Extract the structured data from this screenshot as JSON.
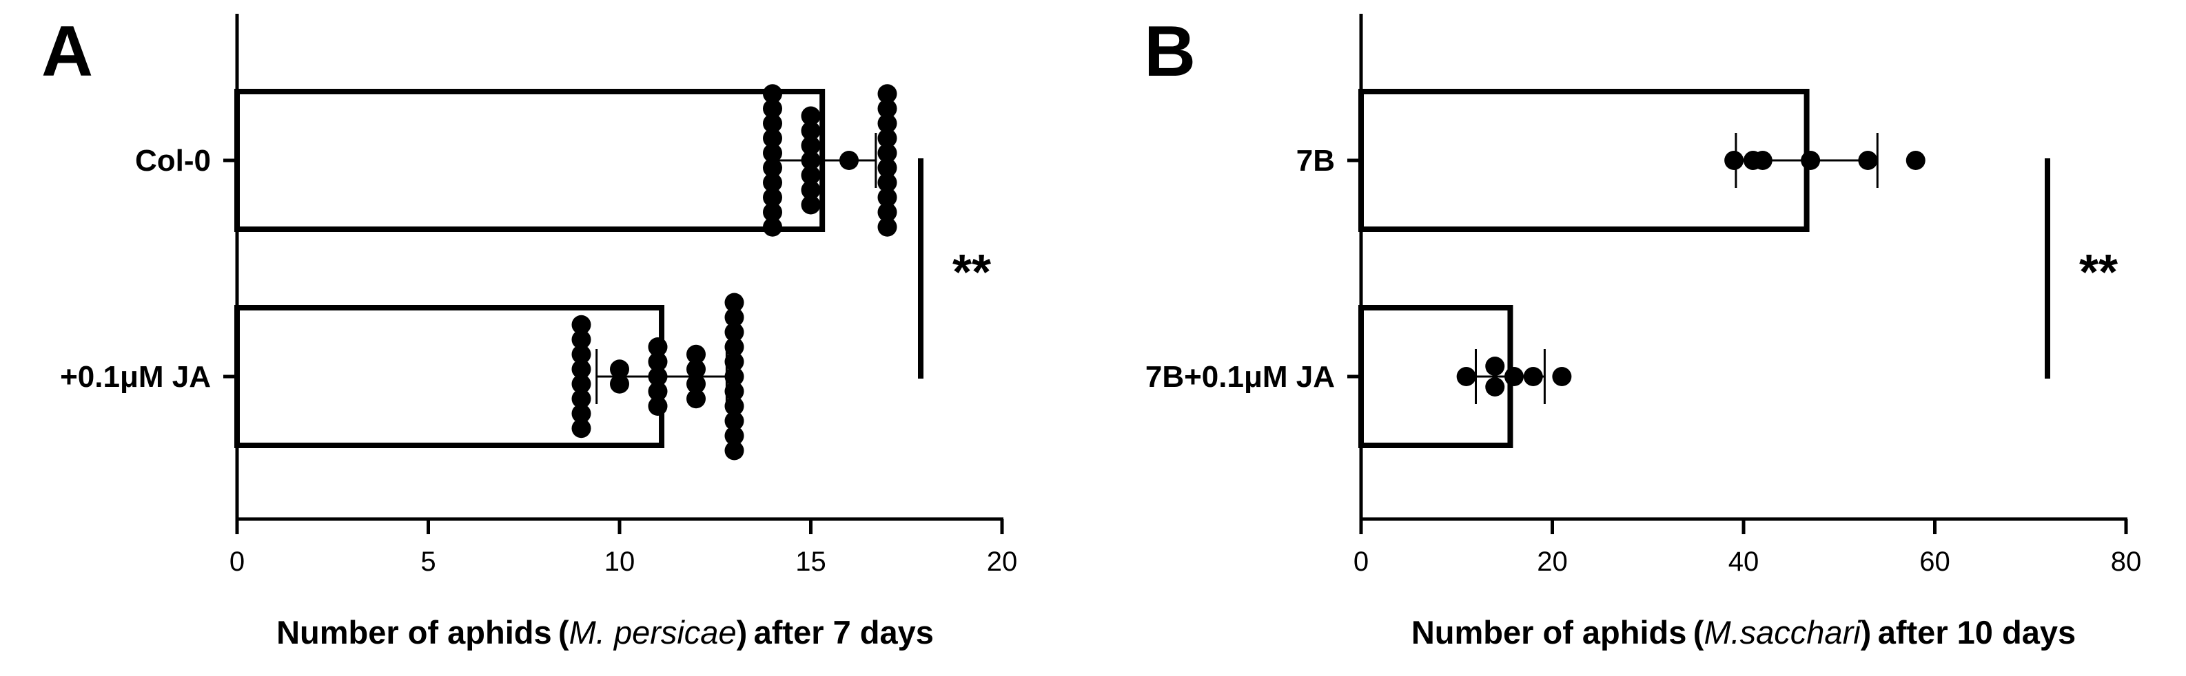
{
  "chart_data": [
    {
      "type": "bar",
      "orientation": "horizontal",
      "panel_label": "A",
      "categories": [
        "Col-0",
        "+0.1μM JA"
      ],
      "values": [
        15.3,
        11.1
      ],
      "error": [
        {
          "low": 13.9,
          "high": 16.7
        },
        {
          "low": 9.4,
          "high": 12.8
        }
      ],
      "points": [
        [
          14,
          14,
          14,
          14,
          14,
          14,
          14,
          14,
          14,
          14,
          15,
          15,
          15,
          15,
          15,
          15,
          15,
          16,
          17,
          17,
          17,
          17,
          17,
          17,
          17,
          17,
          17,
          17
        ],
        [
          9,
          9,
          9,
          9,
          9,
          9,
          9,
          9,
          10,
          10,
          11,
          11,
          11,
          11,
          11,
          12,
          12,
          12,
          12,
          13,
          13,
          13,
          13,
          13,
          13,
          13,
          13,
          13,
          13,
          13
        ]
      ],
      "xlim": [
        0,
        20
      ],
      "xticks": [
        "0",
        "5",
        "10",
        "15",
        "20"
      ],
      "xlabel": {
        "pre": "Number of aphids (",
        "italic": "M. persicae",
        "post": ") after 7 days"
      },
      "ylabel": "",
      "significance": {
        "label": "**",
        "at": 17.9
      }
    },
    {
      "type": "bar",
      "orientation": "horizontal",
      "panel_label": "B",
      "categories": [
        "7B",
        "7B+0.1μM JA"
      ],
      "values": [
        46.6,
        15.6
      ],
      "error": [
        {
          "low": 39.2,
          "high": 54.0
        },
        {
          "low": 12.0,
          "high": 19.2
        }
      ],
      "points": [
        [
          39,
          41,
          42,
          47,
          53,
          58
        ],
        [
          11,
          14,
          14,
          16,
          18,
          21
        ]
      ],
      "xlim": [
        0,
        80
      ],
      "xticks": [
        "0",
        "20",
        "40",
        "60",
        "80"
      ],
      "xlabel": {
        "pre": "Number of aphids (",
        "italic": "M.sacchari",
        "post": ") after 10 days"
      },
      "ylabel": "",
      "significance": {
        "label": "**",
        "at": 71.8
      }
    }
  ]
}
